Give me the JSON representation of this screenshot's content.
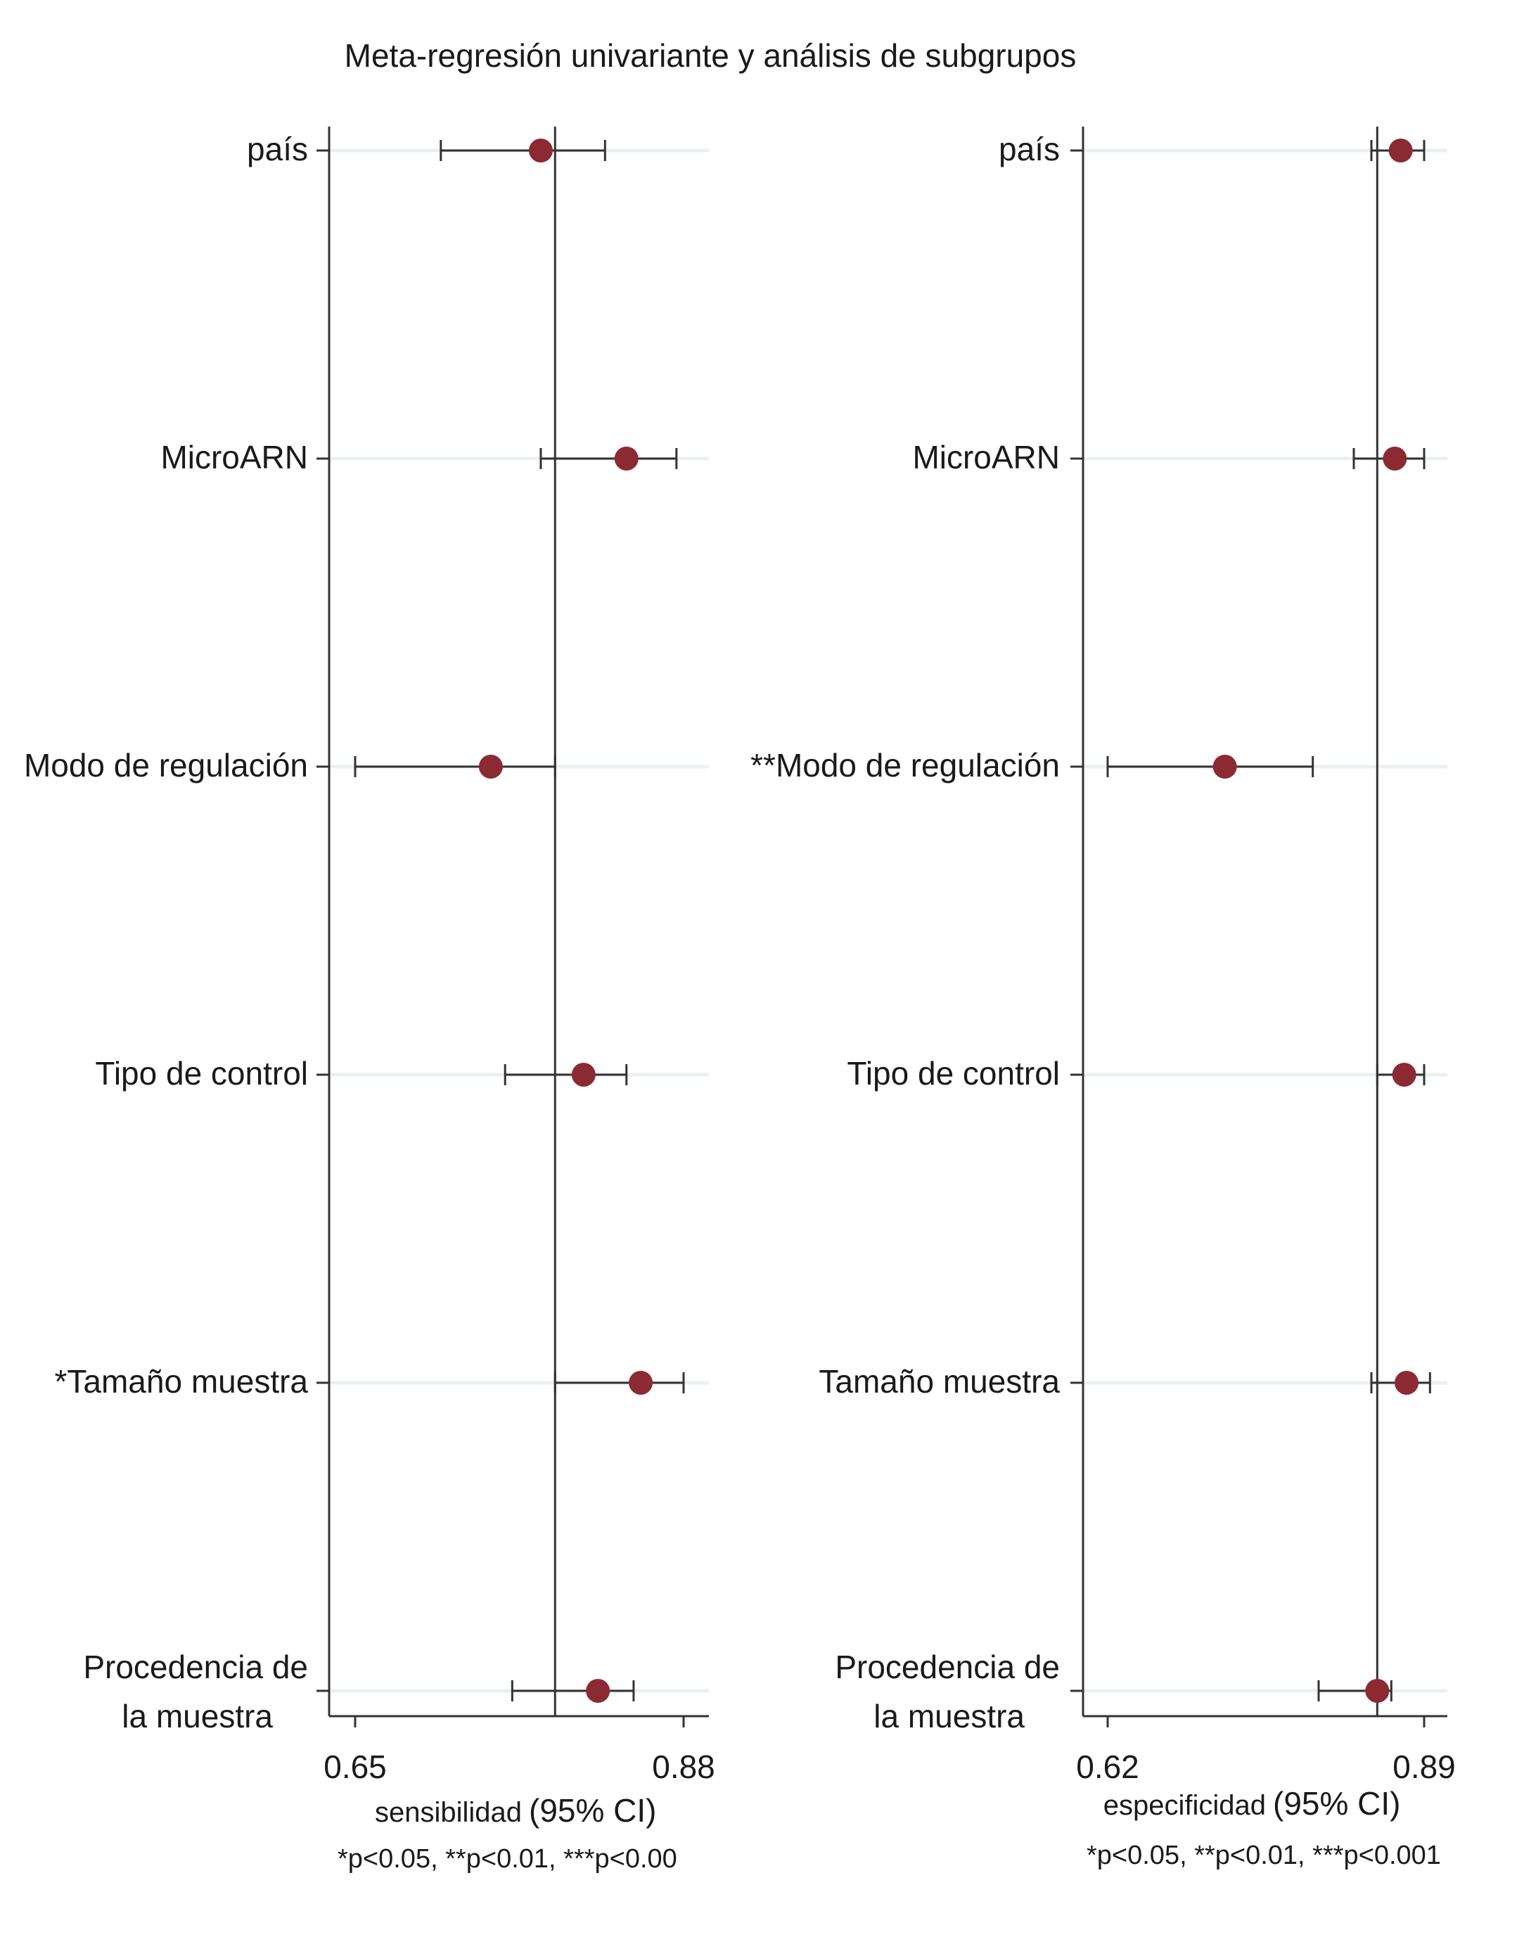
{
  "title": "Meta-regresión univariante y análisis de subgrupos",
  "colors": {
    "marker": "#8c2a33",
    "axis": "#333333",
    "gridline": "#ebeff0",
    "text": "#1a1a1a"
  },
  "chart_data": [
    {
      "type": "scatter",
      "subtype": "forest-plot",
      "categories": [
        [
          "país"
        ],
        [
          "MicroARN"
        ],
        [
          "Modo de regulación"
        ],
        [
          "Tipo de control"
        ],
        [
          "*Tamaño muestra"
        ],
        [
          "Procedencia de",
          "la muestra"
        ]
      ],
      "point_estimates": [
        0.78,
        0.84,
        0.745,
        0.81,
        0.85,
        0.82
      ],
      "ci_lower": [
        0.71,
        0.78,
        0.65,
        0.755,
        0.79,
        0.76
      ],
      "ci_upper": [
        0.825,
        0.875,
        0.79,
        0.84,
        0.88,
        0.845
      ],
      "reference_line": 0.79,
      "xlim": [
        0.65,
        0.88
      ],
      "xticks": [
        "0.65",
        "0.88"
      ],
      "xlabel": "sensibilidad",
      "xlabel_suffix": "(95% CI)",
      "footnote": "*p<0.05, **p<0.01, ***p<0.00"
    },
    {
      "type": "scatter",
      "subtype": "forest-plot",
      "categories": [
        [
          "país"
        ],
        [
          "MicroARN"
        ],
        [
          "**Modo de regulación"
        ],
        [
          "Tipo de control"
        ],
        [
          "Tamaño muestra"
        ],
        [
          "Procedencia de",
          "la muestra"
        ]
      ],
      "point_estimates": [
        0.87,
        0.865,
        0.72,
        0.873,
        0.875,
        0.85
      ],
      "ci_lower": [
        0.845,
        0.83,
        0.62,
        0.85,
        0.845,
        0.8
      ],
      "ci_upper": [
        0.89,
        0.89,
        0.795,
        0.89,
        0.895,
        0.862
      ],
      "reference_line": 0.85,
      "xlim": [
        0.62,
        0.89
      ],
      "xticks": [
        "0.62",
        "0.89"
      ],
      "xlabel": "especificidad",
      "xlabel_suffix": "(95% CI)",
      "footnote": "*p<0.05, **p<0.01, ***p<0.001"
    }
  ]
}
